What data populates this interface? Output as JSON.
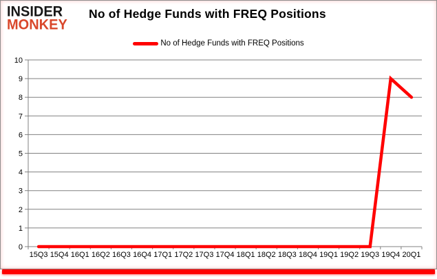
{
  "header": {
    "logo": {
      "line1": "INSIDER",
      "line2": "MONKEY"
    },
    "title": "No of Hedge Funds with FREQ Positions"
  },
  "legend": {
    "label": "No of Hedge Funds with FREQ Positions",
    "color": "#FF0000"
  },
  "chart_data": {
    "type": "line",
    "title": "No of Hedge Funds with FREQ Positions",
    "categories": [
      "15Q3",
      "15Q4",
      "16Q1",
      "16Q2",
      "16Q3",
      "16Q4",
      "17Q1",
      "17Q2",
      "17Q3",
      "17Q4",
      "18Q1",
      "18Q2",
      "18Q3",
      "18Q4",
      "19Q1",
      "19Q2",
      "19Q3",
      "19Q4",
      "20Q1"
    ],
    "series": [
      {
        "name": "No of Hedge Funds with FREQ Positions",
        "color": "#FF0000",
        "values": [
          0,
          0,
          0,
          0,
          0,
          0,
          0,
          0,
          0,
          0,
          0,
          0,
          0,
          0,
          0,
          0,
          0,
          9,
          8
        ]
      }
    ],
    "xlabel": "",
    "ylabel": "",
    "ylim": [
      0,
      10
    ],
    "yticks": [
      0,
      1,
      2,
      3,
      4,
      5,
      6,
      7,
      8,
      9,
      10
    ],
    "grid": true,
    "legend_position": "top-center"
  },
  "colors": {
    "line": "#FF0000",
    "grid": "#808080",
    "axis": "#808080",
    "text": "#000000",
    "logo_accent": "#D9472B",
    "bottom_bar": "#FF0000",
    "background": "#FFFFFF"
  }
}
